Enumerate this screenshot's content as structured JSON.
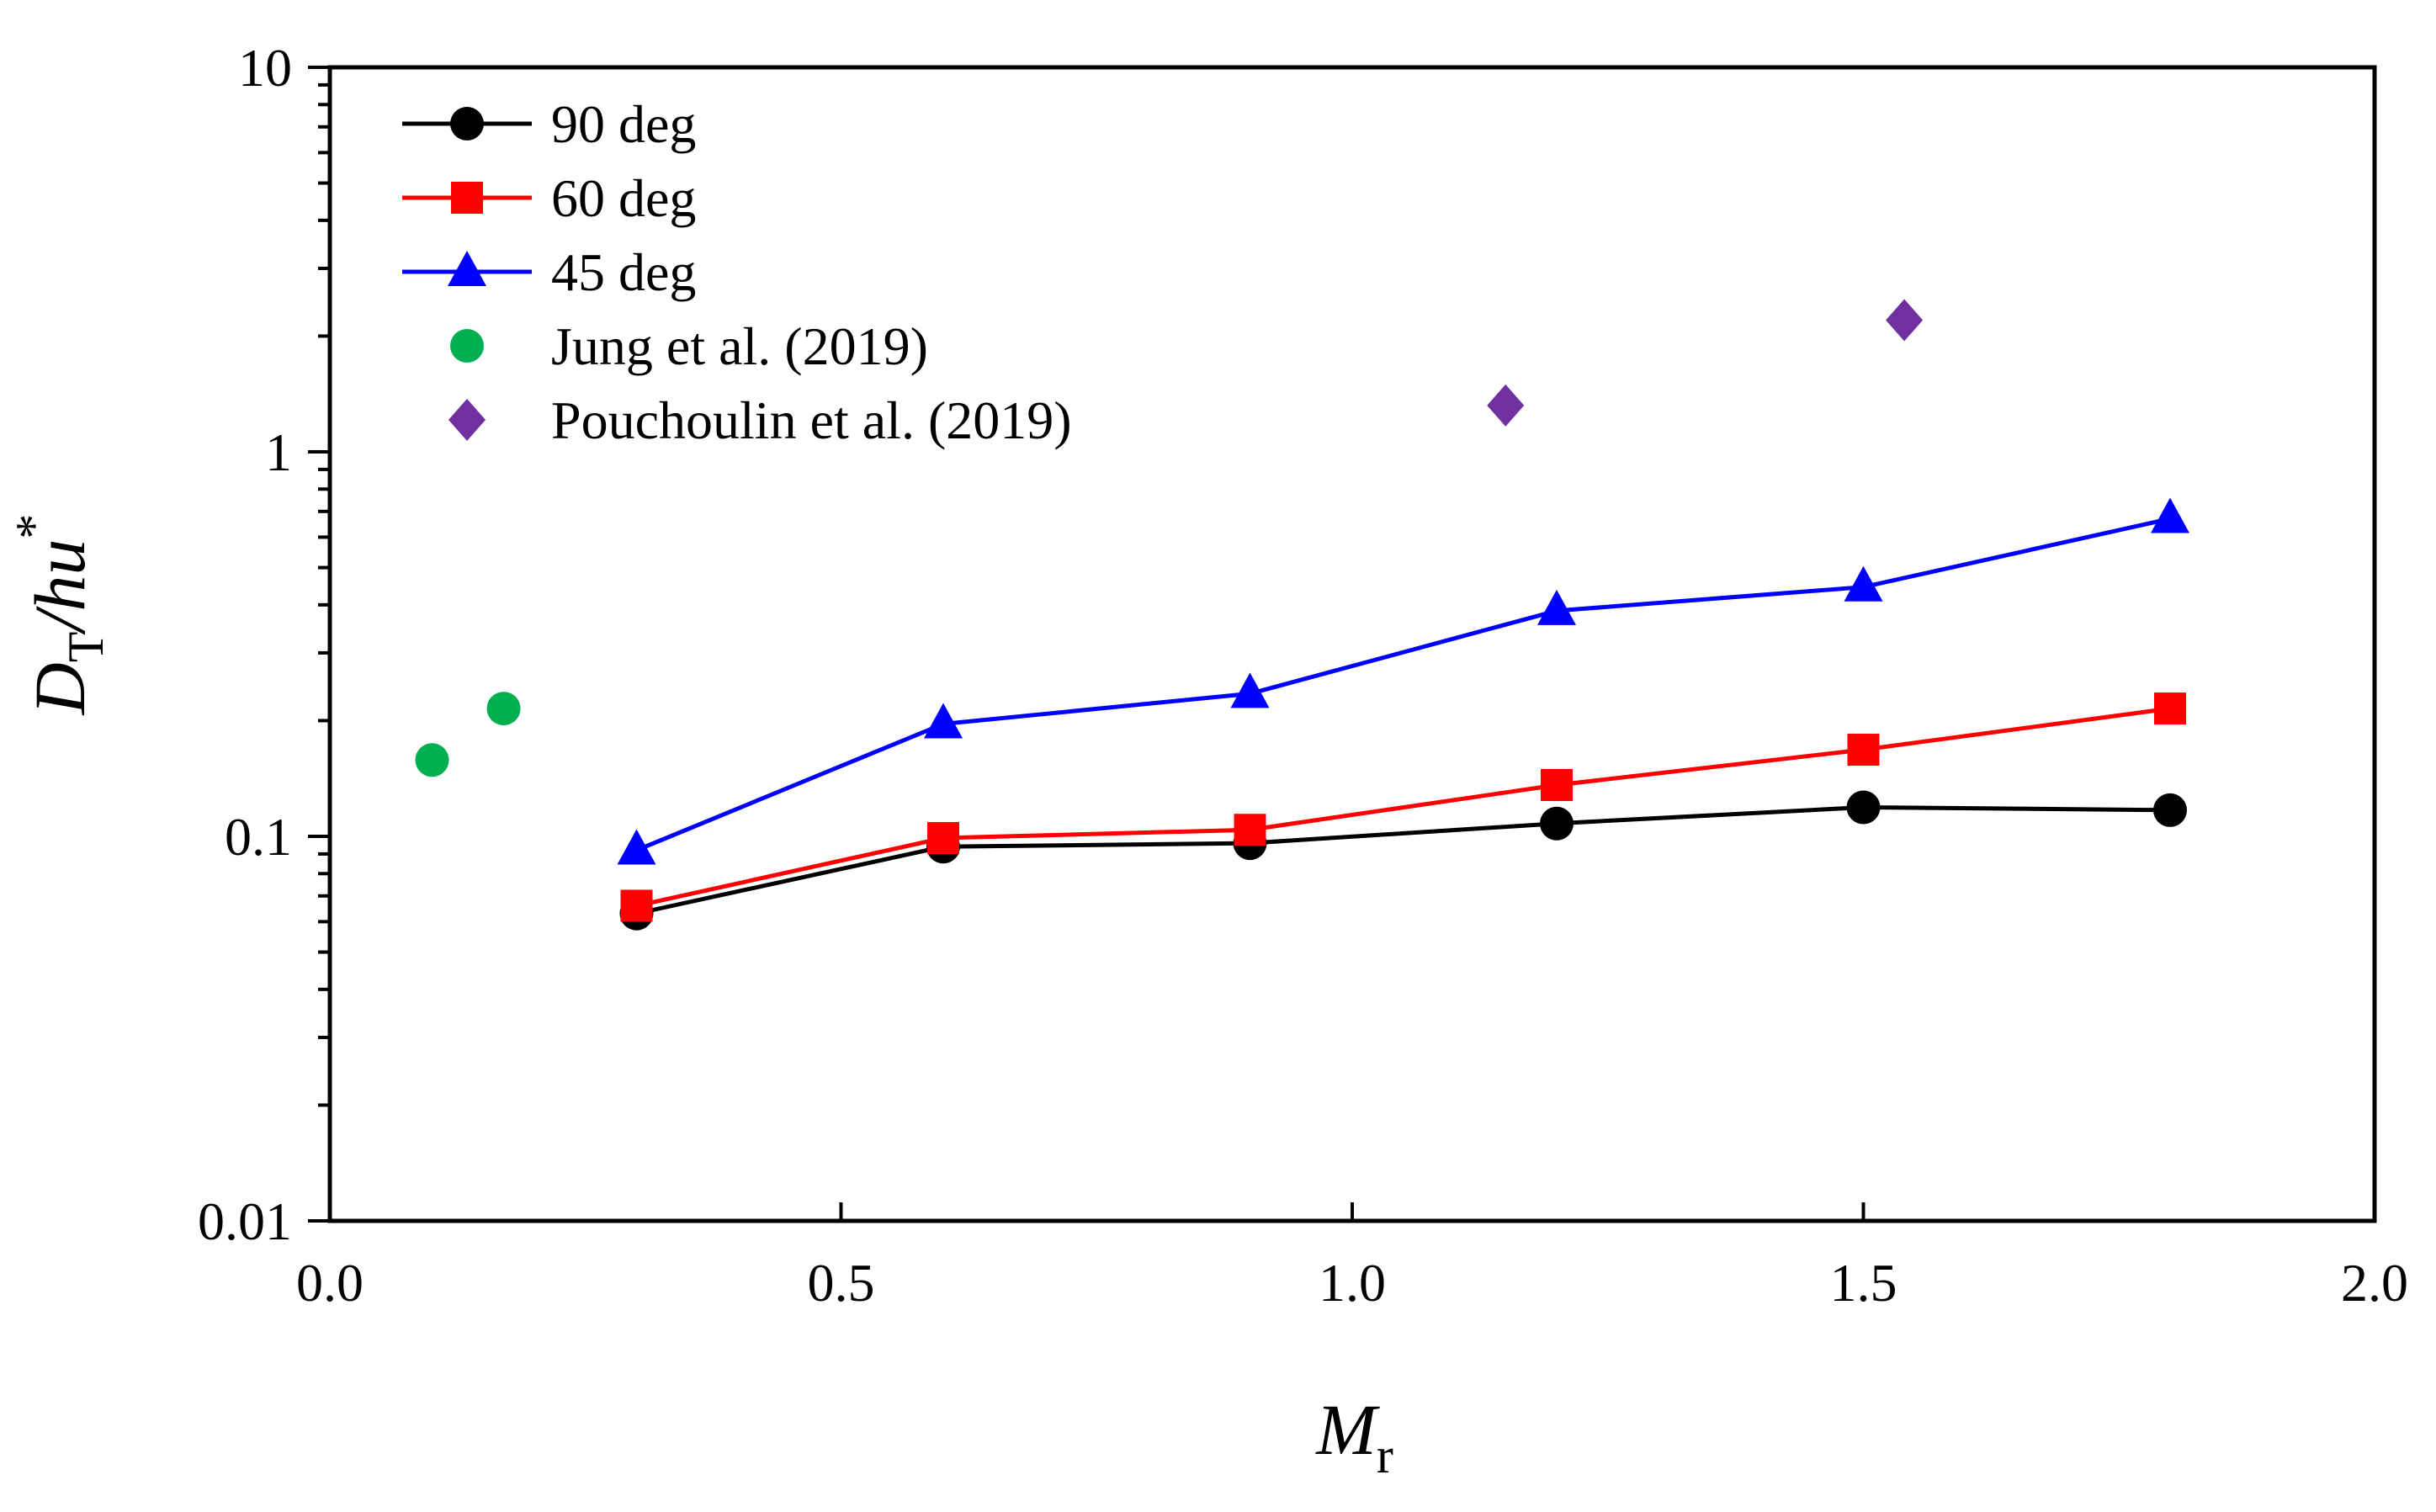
{
  "chart_data": {
    "type": "scatter",
    "title": "",
    "xlabel": {
      "main": "M",
      "sub": "r"
    },
    "ylabel": {
      "main": "D",
      "sub": "T",
      "rest": "/hu",
      "sup": "*"
    },
    "xlim": [
      0,
      2
    ],
    "ylim": [
      0.01,
      10
    ],
    "yscale": "log",
    "x_ticks": [
      {
        "value": 0,
        "label": "0.0"
      },
      {
        "value": 0.5,
        "label": "0.5"
      },
      {
        "value": 1,
        "label": "1.0"
      },
      {
        "value": 1.5,
        "label": "1.5"
      },
      {
        "value": 2,
        "label": "2.0"
      }
    ],
    "y_ticks": [
      {
        "value": 0.01,
        "label": "0.01"
      },
      {
        "value": 0.1,
        "label": "0.1"
      },
      {
        "value": 1,
        "label": "1"
      },
      {
        "value": 10,
        "label": "10"
      }
    ],
    "grid": false,
    "legend_position": "top-left",
    "series": [
      {
        "name": "90 deg",
        "color": "#000000",
        "marker": "circle",
        "line": true,
        "x": [
          0.3,
          0.6,
          0.9,
          1.2,
          1.5,
          1.8
        ],
        "y": [
          0.063,
          0.094,
          0.096,
          0.108,
          0.119,
          0.117
        ]
      },
      {
        "name": "60 deg",
        "color": "#ff0000",
        "marker": "square",
        "line": true,
        "x": [
          0.3,
          0.6,
          0.9,
          1.2,
          1.5,
          1.8
        ],
        "y": [
          0.066,
          0.099,
          0.104,
          0.136,
          0.168,
          0.215
        ]
      },
      {
        "name": "45 deg",
        "color": "#0000ff",
        "marker": "triangle",
        "line": true,
        "x": [
          0.3,
          0.6,
          0.9,
          1.2,
          1.5,
          1.8
        ],
        "y": [
          0.092,
          0.196,
          0.235,
          0.386,
          0.445,
          0.67
        ]
      },
      {
        "name": "Jung et al. (2019)",
        "color": "#00b050",
        "marker": "circle",
        "line": false,
        "x": [
          0.1,
          0.17
        ],
        "y": [
          0.158,
          0.215
        ]
      },
      {
        "name": "Pouchoulin et al. (2019)",
        "color": "#7030a0",
        "marker": "diamond",
        "line": false,
        "x": [
          1.15,
          1.54
        ],
        "y": [
          1.32,
          2.2
        ]
      }
    ]
  }
}
